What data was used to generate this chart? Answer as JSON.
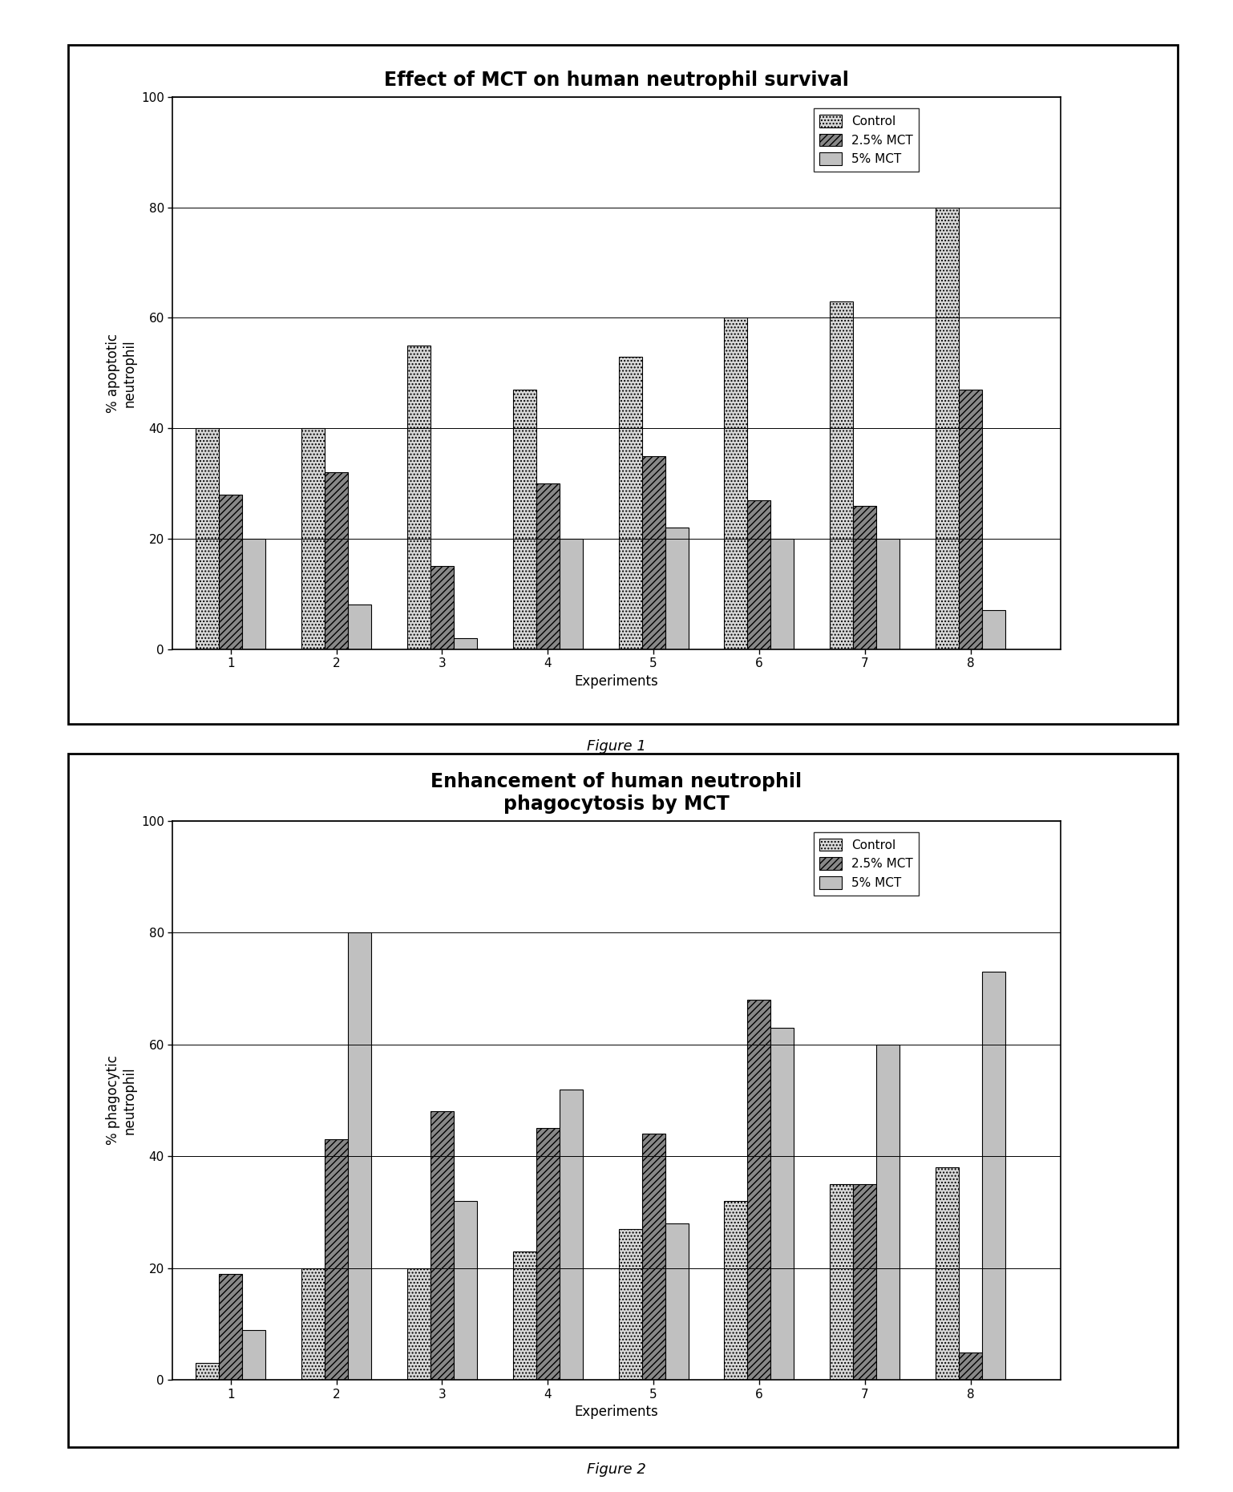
{
  "fig1": {
    "title": "Effect of MCT on human neutrophil survival",
    "xlabel": "Experiments",
    "ylabel": "% apoptotic\nneutrophil",
    "ylim": [
      0,
      100
    ],
    "yticks": [
      0,
      20,
      40,
      60,
      80,
      100
    ],
    "experiments": [
      1,
      2,
      3,
      4,
      5,
      6,
      7,
      8
    ],
    "control": [
      40,
      40,
      55,
      47,
      53,
      60,
      63,
      80
    ],
    "mct25": [
      28,
      32,
      15,
      30,
      35,
      27,
      26,
      47
    ],
    "mct5": [
      20,
      8,
      2,
      20,
      22,
      20,
      20,
      7
    ],
    "figure_label": "Figure 1"
  },
  "fig2": {
    "title": "Enhancement of human neutrophil\nphagocytosis by MCT",
    "xlabel": "Experiments",
    "ylabel": "% phagocytic\nneutrophil",
    "ylim": [
      0,
      100
    ],
    "yticks": [
      0,
      20,
      40,
      60,
      80,
      100
    ],
    "experiments": [
      1,
      2,
      3,
      4,
      5,
      6,
      7,
      8
    ],
    "control": [
      3,
      20,
      20,
      23,
      27,
      32,
      35,
      38
    ],
    "mct25": [
      19,
      43,
      48,
      45,
      44,
      68,
      35,
      5
    ],
    "mct5": [
      9,
      80,
      32,
      52,
      28,
      63,
      60,
      73
    ],
    "figure_label": "Figure 2"
  },
  "legend_labels": [
    "Control",
    "2.5% MCT",
    "5% MCT"
  ],
  "bar_width": 0.22,
  "background_color": "#ffffff",
  "title_fontsize": 17,
  "label_fontsize": 12,
  "tick_fontsize": 11,
  "legend_fontsize": 11,
  "figure_label_fontsize": 13
}
